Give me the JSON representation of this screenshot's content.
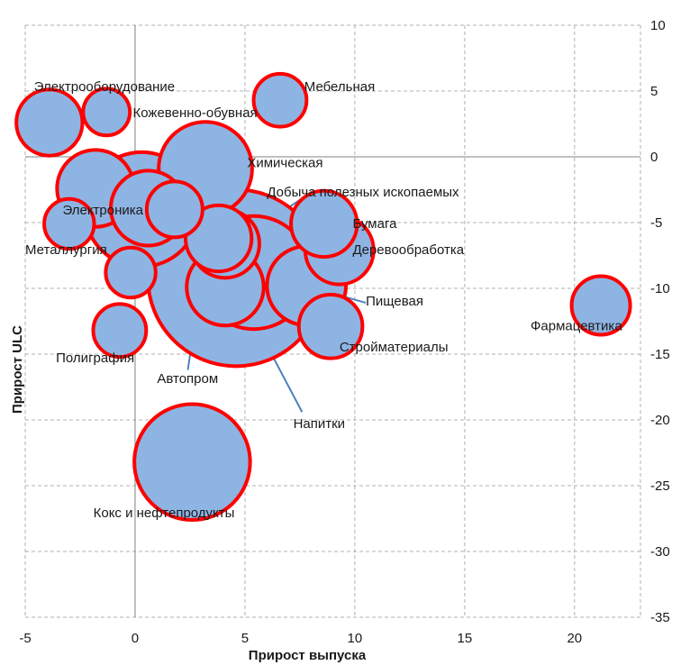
{
  "chart_data": {
    "type": "scatter",
    "title": "",
    "xlabel": "Прирост выпуска",
    "ylabel": "Прирост ULC",
    "xlim": [
      -5,
      23
    ],
    "ylim": [
      -35,
      10
    ],
    "x_ticks": [
      -5,
      0,
      5,
      10,
      15,
      20
    ],
    "y_ticks": [
      10,
      5,
      0,
      -5,
      -10,
      -15,
      -20,
      -25,
      -30,
      -35
    ],
    "grid": "dashed",
    "marker_fill": "#8EB4E3",
    "marker_edge": "#FF0000",
    "arrow_color": "#4F81BD",
    "points": [
      {
        "x": -3.9,
        "y": 2.6,
        "size": 14
      },
      {
        "x": -1.3,
        "y": 3.4,
        "size": 7
      },
      {
        "x": 6.6,
        "y": 4.3,
        "size": 9
      },
      {
        "x": -1.8,
        "y": -2.4,
        "size": 19
      },
      {
        "x": 3.2,
        "y": -0.9,
        "size": 28
      },
      {
        "x": 0.3,
        "y": -4.0,
        "size": 42
      },
      {
        "x": 0.6,
        "y": -3.9,
        "size": 18
      },
      {
        "x": 1.8,
        "y": -4.0,
        "size": 10
      },
      {
        "x": -3.0,
        "y": -5.1,
        "size": 8
      },
      {
        "x": -0.2,
        "y": -8.8,
        "size": 8
      },
      {
        "x": -0.7,
        "y": -13.2,
        "size": 9
      },
      {
        "x": 4.6,
        "y": -9.2,
        "size": 100
      },
      {
        "x": 5.4,
        "y": -8.8,
        "size": 41
      },
      {
        "x": 4.1,
        "y": -6.6,
        "size": 15
      },
      {
        "x": 3.8,
        "y": -6.2,
        "size": 14
      },
      {
        "x": 4.1,
        "y": -9.9,
        "size": 19
      },
      {
        "x": 7.8,
        "y": -9.8,
        "size": 20
      },
      {
        "x": 8.6,
        "y": -5.1,
        "size": 14
      },
      {
        "x": 9.3,
        "y": -7.1,
        "size": 15
      },
      {
        "x": 8.9,
        "y": -12.9,
        "size": 13
      },
      {
        "x": 21.2,
        "y": -11.3,
        "size": 11
      },
      {
        "x": 2.6,
        "y": -23.2,
        "size": 43
      }
    ],
    "annotations": [
      {
        "text": "Электрооборудование",
        "x": -4.6,
        "y": 5.0
      },
      {
        "text": "Мебельная",
        "x": 7.7,
        "y": 5.0
      },
      {
        "text": "Кожевенно-обувная",
        "x": -0.1,
        "y": 3.0
      },
      {
        "text": "Химическая",
        "x": 5.1,
        "y": -0.8
      },
      {
        "text": "Добыча полезных ископаемых",
        "x": 6.0,
        "y": -3.0
      },
      {
        "text": "Электроника",
        "x": -3.3,
        "y": -4.4
      },
      {
        "text": "Бумага",
        "x": 9.9,
        "y": -5.4
      },
      {
        "text": "Металлургия",
        "x": -5.0,
        "y": -7.4
      },
      {
        "text": "Деревообработка",
        "x": 9.9,
        "y": -7.4
      },
      {
        "text": "Пищевая",
        "x": 10.5,
        "y": -11.3
      },
      {
        "text": "Фармацевтика",
        "x": 18.0,
        "y": -13.2
      },
      {
        "text": "Полиграфия",
        "x": -3.6,
        "y": -15.6
      },
      {
        "text": "Стройматериалы",
        "x": 9.3,
        "y": -14.8
      },
      {
        "text": "Автопром",
        "x": 1.0,
        "y": -17.2
      },
      {
        "text": "Напитки",
        "x": 7.2,
        "y": -20.6
      },
      {
        "text": "Кокс и нефтепродукты",
        "x": -1.9,
        "y": -27.4
      }
    ],
    "arrows": [
      {
        "from": [
          8.1,
          -2.6
        ],
        "to": [
          5.7,
          -5.3
        ]
      },
      {
        "from": [
          10.5,
          -11.1
        ],
        "to": [
          6.1,
          -9.0
        ]
      },
      {
        "from": [
          2.4,
          -16.2
        ],
        "to": [
          3.3,
          -6.2
        ]
      },
      {
        "from": [
          7.6,
          -19.4
        ],
        "to": [
          4.6,
          -9.9
        ]
      }
    ]
  }
}
